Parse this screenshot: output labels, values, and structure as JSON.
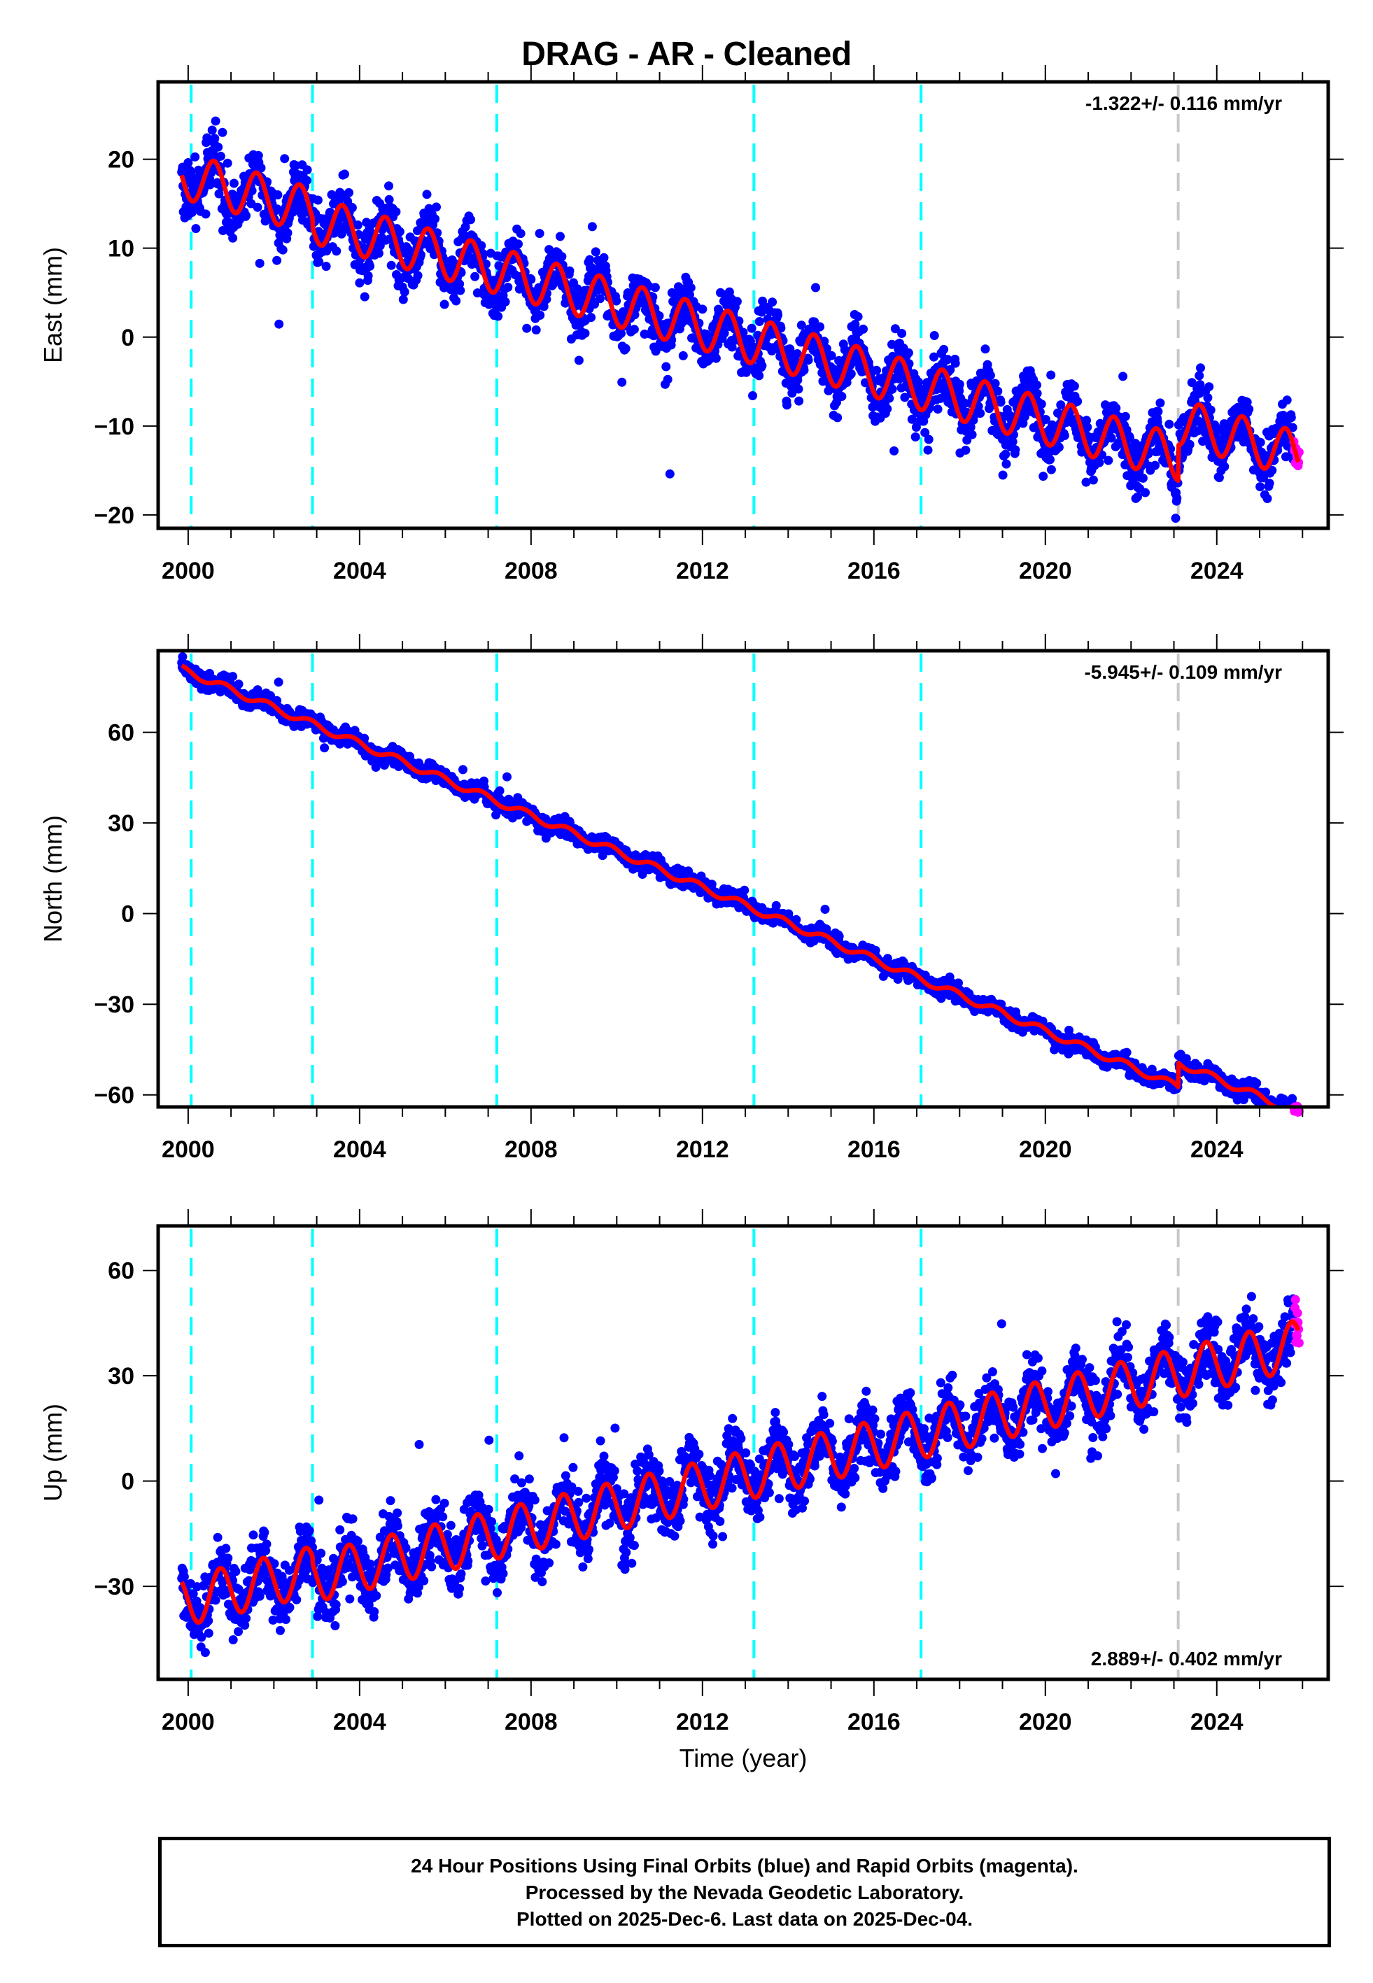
{
  "title": "DRAG  - AR - Cleaned",
  "caption": {
    "line1": "24 Hour Positions Using Final Orbits (blue) and Rapid Orbits (magenta).",
    "line2": "Processed by the Nevada Geodetic Laboratory.",
    "line3": "Plotted on 2025-Dec-6. Last data on 2025-Dec-04."
  },
  "colors": {
    "final_orbits": "#0000ff",
    "rapid_orbits": "#ff00ff",
    "model_fit": "#ff0000",
    "equipment_change": "#00ffff",
    "other_offset": "#c8c8c8",
    "frame": "#000000"
  },
  "chart_data": [
    {
      "type": "scatter",
      "panel": "east",
      "title": "",
      "xlabel": "",
      "ylabel": "East (mm)",
      "xlim": [
        1999.3,
        2026.6
      ],
      "ylim": [
        -21.5,
        28.7
      ],
      "xticks": [
        2000,
        2004,
        2008,
        2012,
        2016,
        2020,
        2024
      ],
      "xtick_labels": [
        "2000",
        "2004",
        "2008",
        "2012",
        "2016",
        "2020",
        "2024"
      ],
      "yticks": [
        -20,
        -10,
        0,
        10,
        20
      ],
      "ytick_labels": [
        "−20",
        "−10",
        "0",
        "10",
        "20"
      ],
      "rate_text": "-1.322+/- 0.116 mm/yr",
      "rate_position": "top-right",
      "model": {
        "intercept_2000": 18.0,
        "rate": -1.322,
        "annual_amp": 2.6,
        "phase": 0.35,
        "noise": 1.6,
        "offsets": [
          {
            "t": 2002.9,
            "d": -1.0
          },
          {
            "t": 2023.1,
            "d": 4.0
          }
        ]
      },
      "series": [
        {
          "name": "Final Orbits",
          "color": "#0000ff",
          "x_range": [
            1999.85,
            2025.8
          ]
        },
        {
          "name": "Rapid Orbits",
          "color": "#ff00ff",
          "x_range": [
            2025.8,
            2025.93
          ]
        },
        {
          "name": "Model fit",
          "color": "#ff0000",
          "x_range": [
            1999.85,
            2025.9
          ]
        }
      ],
      "offset_lines": [
        {
          "t": 2000.07,
          "kind": "equipment"
        },
        {
          "t": 2002.9,
          "kind": "equipment"
        },
        {
          "t": 2007.2,
          "kind": "equipment"
        },
        {
          "t": 2013.2,
          "kind": "equipment"
        },
        {
          "t": 2017.1,
          "kind": "equipment"
        },
        {
          "t": 2023.1,
          "kind": "other"
        }
      ]
    },
    {
      "type": "scatter",
      "panel": "north",
      "title": "",
      "xlabel": "",
      "ylabel": "North (mm)",
      "xlim": [
        1999.3,
        2026.6
      ],
      "ylim": [
        -64,
        87
      ],
      "xticks": [
        2000,
        2004,
        2008,
        2012,
        2016,
        2020,
        2024
      ],
      "xtick_labels": [
        "2000",
        "2004",
        "2008",
        "2012",
        "2016",
        "2020",
        "2024"
      ],
      "yticks": [
        -60,
        -30,
        0,
        30,
        60
      ],
      "ytick_labels": [
        "−60",
        "−30",
        "0",
        "30",
        "60"
      ],
      "rate_text": "-5.945+/- 0.109 mm/yr",
      "rate_position": "top-right",
      "model": {
        "intercept_2000": 80.0,
        "rate": -5.945,
        "annual_amp": 1.2,
        "phase": 0.6,
        "noise": 1.3,
        "offsets": [
          {
            "t": 2023.1,
            "d": 8.0
          }
        ]
      },
      "series": [
        {
          "name": "Final Orbits",
          "color": "#0000ff",
          "x_range": [
            1999.85,
            2025.8
          ]
        },
        {
          "name": "Rapid Orbits",
          "color": "#ff00ff",
          "x_range": [
            2025.8,
            2025.93
          ]
        },
        {
          "name": "Model fit",
          "color": "#ff0000",
          "x_range": [
            1999.85,
            2025.9
          ]
        }
      ],
      "offset_lines": [
        {
          "t": 2000.07,
          "kind": "equipment"
        },
        {
          "t": 2002.9,
          "kind": "equipment"
        },
        {
          "t": 2007.2,
          "kind": "equipment"
        },
        {
          "t": 2013.2,
          "kind": "equipment"
        },
        {
          "t": 2017.1,
          "kind": "equipment"
        },
        {
          "t": 2023.1,
          "kind": "other"
        }
      ]
    },
    {
      "type": "scatter",
      "panel": "up",
      "title": "",
      "xlabel": "Time (year)",
      "ylabel": "Up (mm)",
      "xlim": [
        1999.3,
        2026.6
      ],
      "ylim": [
        -56.5,
        72.7
      ],
      "xticks": [
        2000,
        2004,
        2008,
        2012,
        2016,
        2020,
        2024
      ],
      "xtick_labels": [
        "2000",
        "2004",
        "2008",
        "2012",
        "2016",
        "2020",
        "2024"
      ],
      "yticks": [
        -30,
        0,
        30,
        60
      ],
      "ytick_labels": [
        "−30",
        "0",
        "30",
        "60"
      ],
      "rate_text": "2.889+/- 0.402 mm/yr",
      "rate_position": "bottom-right",
      "model": {
        "intercept_2000": -34.0,
        "rate": 2.889,
        "annual_amp": 7.0,
        "phase": 0.5,
        "noise": 4.5,
        "offsets": [
          {
            "t": 2002.9,
            "d": -2.0
          }
        ]
      },
      "series": [
        {
          "name": "Final Orbits",
          "color": "#0000ff",
          "x_range": [
            1999.85,
            2025.8
          ]
        },
        {
          "name": "Rapid Orbits",
          "color": "#ff00ff",
          "x_range": [
            2025.8,
            2025.93
          ]
        },
        {
          "name": "Model fit",
          "color": "#ff0000",
          "x_range": [
            1999.85,
            2025.9
          ]
        }
      ],
      "offset_lines": [
        {
          "t": 2000.07,
          "kind": "equipment"
        },
        {
          "t": 2002.9,
          "kind": "equipment"
        },
        {
          "t": 2007.2,
          "kind": "equipment"
        },
        {
          "t": 2013.2,
          "kind": "equipment"
        },
        {
          "t": 2017.1,
          "kind": "equipment"
        },
        {
          "t": 2023.1,
          "kind": "other"
        }
      ]
    }
  ]
}
